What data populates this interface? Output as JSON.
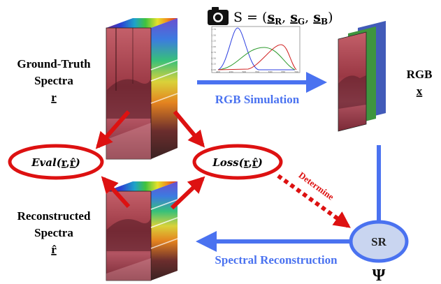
{
  "labels": {
    "gt_line1": "Ground-Truth",
    "gt_line2": "Spectra",
    "gt_symbol": "r",
    "rec_line1": "Reconstructed",
    "rec_line2": "Spectra",
    "rec_symbol": "r̂",
    "rgb_line1": "RGB",
    "rgb_symbol": "x",
    "rgb_simulation": "RGB Simulation",
    "spectral_reconstruction": "Spectral Reconstruction",
    "determine": "Determine",
    "sr": "SR",
    "psi": "Ψ",
    "eval_fn": "Eval",
    "loss_fn": "Loss",
    "sens_S": "S = (",
    "sens_sR": "s",
    "sens_sub_R": "R",
    "sens_sG": "s",
    "sens_sub_G": "G",
    "sens_sB": "s",
    "sens_sub_B": "B",
    "sens_close": ")",
    "arg_r": "r",
    "arg_comma": ",",
    "arg_rhat": "r̂"
  },
  "colors": {
    "blue_arrow": "#4A72F0",
    "red_arrow": "#DD1111",
    "sr_fill": "#C9D5F0",
    "sr_stroke": "#4A72F0",
    "scene_tint": "#b23a4a"
  },
  "icons": [
    "camera-icon"
  ],
  "inset_chart": {
    "x_ticks": [
      "400",
      "450",
      "500",
      "550",
      "600",
      "650",
      "700"
    ],
    "y_ticks": [
      "0.00",
      "0.25",
      "0.50",
      "0.75",
      "1.00",
      "1.25",
      "1.50",
      "1.75"
    ]
  }
}
